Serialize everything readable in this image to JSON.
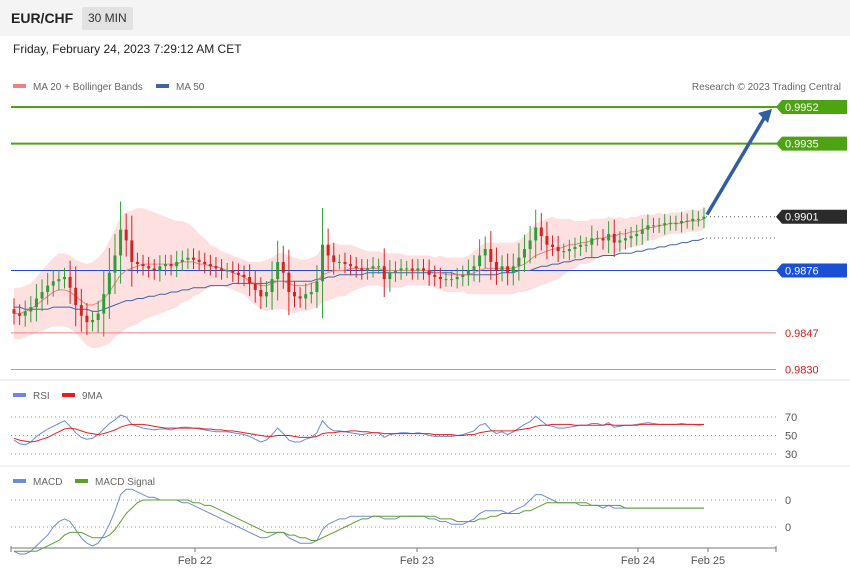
{
  "header": {
    "pair": "EUR/CHF",
    "timeframe": "30 MIN",
    "datetime": "Friday, February 24, 2023 7:29:12 AM CET"
  },
  "colors": {
    "up": "#2e9e3b",
    "down": "#d32323",
    "ma20": "#f08080",
    "band": "#ffd6d6",
    "ma50": "#3f65a8",
    "resistance": "#4da312",
    "pivot": "#1a4fd6",
    "support": "#f08080",
    "arrow": "#2f5fa0",
    "rsi": "#6f8ad8",
    "rsi_ma": "#e02020",
    "macd": "#6f8ad8",
    "macd_signal": "#5aa02c"
  },
  "chart_data": [
    {
      "type": "candlestick",
      "legend": [
        {
          "name": "MA 20 + Bollinger Bands",
          "color": "#f08080"
        },
        {
          "name": "MA 50",
          "color": "#3f65a8"
        }
      ],
      "credit": "Research © 2023 Trading Central",
      "ylim": [
        0.9825,
        0.996
      ],
      "x_labels": [
        "Feb 22",
        "Feb 23",
        "Feb 24",
        "Feb 25"
      ],
      "levels": [
        {
          "value": 0.9952,
          "label": "0.9952",
          "kind": "resistance"
        },
        {
          "value": 0.9935,
          "label": "0.9935",
          "kind": "resistance"
        },
        {
          "value": 0.9901,
          "label": "0.9901",
          "kind": "last"
        },
        {
          "value": 0.9876,
          "label": "0.9876",
          "kind": "pivot"
        },
        {
          "value": 0.9847,
          "label": "0.9847",
          "kind": "support"
        },
        {
          "value": 0.983,
          "label": "0.9830",
          "kind": "support"
        }
      ],
      "close": [
        0.9856,
        0.9855,
        0.9857,
        0.9859,
        0.9863,
        0.9866,
        0.9869,
        0.9871,
        0.9872,
        0.9873,
        0.9868,
        0.986,
        0.9855,
        0.9852,
        0.9853,
        0.9856,
        0.9865,
        0.9875,
        0.9883,
        0.9895,
        0.989,
        0.988,
        0.9879,
        0.9878,
        0.9877,
        0.9876,
        0.9878,
        0.9879,
        0.9878,
        0.988,
        0.9881,
        0.9882,
        0.9881,
        0.988,
        0.9879,
        0.9878,
        0.9877,
        0.9876,
        0.9876,
        0.9875,
        0.9874,
        0.9873,
        0.987,
        0.9867,
        0.9864,
        0.9866,
        0.9872,
        0.988,
        0.9875,
        0.9866,
        0.9864,
        0.9863,
        0.9865,
        0.9866,
        0.9871,
        0.9888,
        0.9883,
        0.988,
        0.988,
        0.9879,
        0.9878,
        0.9877,
        0.9876,
        0.9877,
        0.9878,
        0.9878,
        0.9872,
        0.9875,
        0.9876,
        0.9877,
        0.9877,
        0.9876,
        0.9877,
        0.9876,
        0.9874,
        0.9873,
        0.9872,
        0.9872,
        0.9872,
        0.9873,
        0.9874,
        0.9876,
        0.9878,
        0.9883,
        0.9886,
        0.988,
        0.9876,
        0.9878,
        0.9875,
        0.9878,
        0.9882,
        0.9886,
        0.989,
        0.9896,
        0.9892,
        0.9888,
        0.9887,
        0.9885,
        0.9885,
        0.9886,
        0.9887,
        0.9888,
        0.9888,
        0.9891,
        0.9891,
        0.989,
        0.9893,
        0.9889,
        0.989,
        0.9891,
        0.9892,
        0.9893,
        0.9895,
        0.9897,
        0.9897,
        0.9897,
        0.9898,
        0.9898,
        0.9898,
        0.9899,
        0.9899,
        0.99,
        0.99,
        0.9901
      ],
      "ma20": [
        0.9856,
        0.9856,
        0.9857,
        0.9858,
        0.986,
        0.9862,
        0.9864,
        0.9866,
        0.9867,
        0.9867,
        0.9866,
        0.9864,
        0.9862,
        0.986,
        0.986,
        0.9861,
        0.9863,
        0.9866,
        0.987,
        0.9874,
        0.9876,
        0.9877,
        0.9878,
        0.9879,
        0.9879,
        0.9879,
        0.9879,
        0.9879,
        0.9879,
        0.9879,
        0.988,
        0.988,
        0.988,
        0.9879,
        0.9879,
        0.9878,
        0.9878,
        0.9877,
        0.9876,
        0.9875,
        0.9874,
        0.9873,
        0.9871,
        0.987,
        0.9869,
        0.9869,
        0.987,
        0.9871,
        0.9871,
        0.987,
        0.9869,
        0.9869,
        0.9869,
        0.987,
        0.9871,
        0.9874,
        0.9875,
        0.9876,
        0.9876,
        0.9876,
        0.9877,
        0.9877,
        0.9877,
        0.9877,
        0.9877,
        0.9877,
        0.9876,
        0.9876,
        0.9876,
        0.9876,
        0.9876,
        0.9876,
        0.9876,
        0.9876,
        0.9876,
        0.9875,
        0.9875,
        0.9874,
        0.9874,
        0.9874,
        0.9874,
        0.9874,
        0.9875,
        0.9876,
        0.9877,
        0.9877,
        0.9877,
        0.9877,
        0.9877,
        0.9877,
        0.9878,
        0.9879,
        0.9881,
        0.9883,
        0.9884,
        0.9885,
        0.9886,
        0.9886,
        0.9887,
        0.9888,
        0.9888,
        0.9889,
        0.9889,
        0.989,
        0.9891,
        0.9891,
        0.9892,
        0.9892,
        0.9893,
        0.9893,
        0.9894,
        0.9894,
        0.9895,
        0.9896,
        0.9896,
        0.9897,
        0.9897,
        0.9898,
        0.9898,
        0.9898,
        0.9899,
        0.9899,
        0.9899,
        0.99
      ],
      "band_width": [
        0.0012,
        0.0012,
        0.0012,
        0.0012,
        0.0013,
        0.0014,
        0.0015,
        0.0016,
        0.0017,
        0.0017,
        0.0017,
        0.0017,
        0.0018,
        0.0019,
        0.002,
        0.0021,
        0.0022,
        0.0024,
        0.0025,
        0.0027,
        0.0027,
        0.0027,
        0.0027,
        0.0026,
        0.0025,
        0.0024,
        0.0023,
        0.0022,
        0.0021,
        0.002,
        0.0019,
        0.0018,
        0.0016,
        0.0014,
        0.0012,
        0.001,
        0.0009,
        0.0008,
        0.0008,
        0.0008,
        0.0008,
        0.0008,
        0.0009,
        0.001,
        0.0011,
        0.0012,
        0.0012,
        0.0013,
        0.0013,
        0.0013,
        0.0013,
        0.0012,
        0.0012,
        0.0012,
        0.0012,
        0.0013,
        0.0013,
        0.0013,
        0.0012,
        0.0012,
        0.0011,
        0.001,
        0.0009,
        0.0008,
        0.0008,
        0.0008,
        0.0008,
        0.0008,
        0.0008,
        0.0008,
        0.0007,
        0.0007,
        0.0007,
        0.0007,
        0.0007,
        0.0007,
        0.0008,
        0.0008,
        0.0008,
        0.0008,
        0.0008,
        0.0009,
        0.001,
        0.0011,
        0.0012,
        0.0012,
        0.0012,
        0.0012,
        0.0012,
        0.0012,
        0.0012,
        0.0013,
        0.0014,
        0.0015,
        0.0015,
        0.0015,
        0.0015,
        0.0014,
        0.0013,
        0.0012,
        0.0011,
        0.001,
        0.001,
        0.001,
        0.0009,
        0.0009,
        0.0009,
        0.0008,
        0.0008,
        0.0007,
        0.0007,
        0.0007,
        0.0007,
        0.0006,
        0.0006,
        0.0006,
        0.0005,
        0.0005,
        0.0005,
        0.0005,
        0.0005,
        0.0005,
        0.0005,
        0.0005
      ],
      "ma50": [
        0.9859,
        0.9859,
        0.9858,
        0.9858,
        0.9858,
        0.9858,
        0.9858,
        0.9859,
        0.9859,
        0.9859,
        0.9859,
        0.9858,
        0.9858,
        0.9858,
        0.9857,
        0.9857,
        0.9858,
        0.9859,
        0.986,
        0.9861,
        0.9862,
        0.9862,
        0.9863,
        0.9863,
        0.9864,
        0.9864,
        0.9865,
        0.9865,
        0.9866,
        0.9866,
        0.9867,
        0.9867,
        0.9868,
        0.9868,
        0.9868,
        0.9869,
        0.9869,
        0.9869,
        0.9869,
        0.987,
        0.987,
        0.987,
        0.987,
        0.987,
        0.987,
        0.987,
        0.9871,
        0.9871,
        0.9871,
        0.9871,
        0.9871,
        0.9871,
        0.9871,
        0.9871,
        0.9872,
        0.9872,
        0.9873,
        0.9873,
        0.9874,
        0.9874,
        0.9874,
        0.9874,
        0.9874,
        0.9875,
        0.9875,
        0.9875,
        0.9875,
        0.9875,
        0.9875,
        0.9875,
        0.9875,
        0.9875,
        0.9875,
        0.9875,
        0.9875,
        0.9875,
        0.9875,
        0.9875,
        0.9875,
        0.9874,
        0.9874,
        0.9874,
        0.9874,
        0.9874,
        0.9874,
        0.9874,
        0.9874,
        0.9875,
        0.9875,
        0.9875,
        0.9876,
        0.9876,
        0.9876,
        0.9877,
        0.9878,
        0.9878,
        0.9879,
        0.9879,
        0.988,
        0.988,
        0.9881,
        0.9881,
        0.9882,
        0.9882,
        0.9882,
        0.9883,
        0.9883,
        0.9883,
        0.9884,
        0.9884,
        0.9884,
        0.9885,
        0.9885,
        0.9886,
        0.9886,
        0.9887,
        0.9887,
        0.9888,
        0.9888,
        0.9889,
        0.9889,
        0.989,
        0.989,
        0.9891
      ],
      "arrow": {
        "from": 0.9902,
        "to": 0.9952
      }
    },
    {
      "type": "line",
      "legend": [
        {
          "name": "RSI",
          "color": "#6f8ad8"
        },
        {
          "name": "9MA",
          "color": "#e02020"
        }
      ],
      "ylim": [
        25,
        80
      ],
      "y_ticks": [
        {
          "value": 70,
          "label": "70"
        },
        {
          "value": 50,
          "label": "50"
        },
        {
          "value": 30,
          "label": "30"
        }
      ],
      "rsi": [
        45,
        41,
        40,
        43,
        49,
        53,
        57,
        60,
        63,
        66,
        60,
        53,
        48,
        46,
        47,
        51,
        57,
        63,
        67,
        72,
        70,
        62,
        60,
        58,
        57,
        56,
        57,
        57,
        56,
        58,
        59,
        59,
        58,
        57,
        56,
        55,
        54,
        54,
        54,
        53,
        52,
        51,
        49,
        46,
        43,
        45,
        51,
        58,
        52,
        45,
        43,
        43,
        46,
        48,
        53,
        66,
        59,
        55,
        55,
        54,
        53,
        52,
        51,
        52,
        53,
        53,
        48,
        51,
        52,
        53,
        53,
        52,
        53,
        52,
        50,
        49,
        49,
        49,
        49,
        50,
        51,
        53,
        55,
        61,
        63,
        56,
        52,
        54,
        51,
        54,
        58,
        62,
        65,
        71,
        66,
        61,
        60,
        58,
        58,
        59,
        60,
        61,
        61,
        63,
        63,
        61,
        64,
        59,
        60,
        61,
        61,
        62,
        63,
        64,
        63,
        62,
        62,
        62,
        62,
        63,
        62,
        62,
        61,
        62
      ],
      "rsi_ma": [
        47,
        45,
        44,
        43,
        44,
        46,
        48,
        51,
        54,
        57,
        58,
        57,
        55,
        53,
        52,
        51,
        52,
        54,
        56,
        59,
        61,
        62,
        62,
        62,
        61,
        60,
        59,
        58,
        58,
        58,
        58,
        58,
        58,
        58,
        57,
        57,
        56,
        56,
        55,
        55,
        54,
        53,
        52,
        51,
        50,
        49,
        49,
        50,
        50,
        50,
        49,
        48,
        48,
        48,
        49,
        52,
        53,
        53,
        54,
        54,
        55,
        55,
        54,
        54,
        53,
        53,
        52,
        52,
        52,
        52,
        52,
        52,
        52,
        52,
        52,
        51,
        51,
        51,
        51,
        50,
        50,
        51,
        51,
        53,
        54,
        55,
        55,
        55,
        55,
        55,
        56,
        57,
        58,
        60,
        61,
        61,
        62,
        62,
        62,
        62,
        61,
        61,
        61,
        61,
        61,
        61,
        62,
        61,
        61,
        61,
        61,
        61,
        62,
        62,
        62,
        62,
        62,
        62,
        62,
        62,
        62,
        62,
        62,
        62
      ]
    },
    {
      "type": "line",
      "legend": [
        {
          "name": "MACD",
          "color": "#6f8ad8"
        },
        {
          "name": "MACD Signal",
          "color": "#5aa02c"
        }
      ],
      "ylim": [
        -0.0016,
        0.0012
      ],
      "y_ticks": [
        {
          "value": 0.0006,
          "label": "0"
        },
        {
          "value": -0.0004,
          "label": "0"
        }
      ],
      "macd": [
        -0.0013,
        -0.0014,
        -0.0014,
        -0.0013,
        -0.0011,
        -0.0009,
        -0.0007,
        -0.0004,
        -0.0002,
        -0.0001,
        -0.0002,
        -0.0005,
        -0.0008,
        -0.001,
        -0.0011,
        -0.001,
        -0.0007,
        -0.0003,
        0.0002,
        0.0008,
        0.001,
        0.001,
        0.0009,
        0.0008,
        0.0007,
        0.0007,
        0.0006,
        0.0006,
        0.0006,
        0.0006,
        0.0005,
        0.0005,
        0.0004,
        0.0003,
        0.0002,
        0.0001,
        0.0,
        -0.0001,
        -0.0002,
        -0.0003,
        -0.0004,
        -0.0005,
        -0.0006,
        -0.0007,
        -0.0008,
        -0.0008,
        -0.0007,
        -0.0006,
        -0.0006,
        -0.0008,
        -0.0009,
        -0.001,
        -0.001,
        -0.001,
        -0.0009,
        -0.0005,
        -0.0003,
        -0.0002,
        -0.0001,
        -0.0001,
        0.0,
        0.0,
        0.0,
        0.0,
        0.0,
        0.0,
        -0.0001,
        -0.0001,
        -0.0001,
        0.0,
        0.0,
        0.0,
        0.0,
        0.0,
        -0.0001,
        -0.0001,
        -0.0002,
        -0.0002,
        -0.0003,
        -0.0003,
        -0.0003,
        -0.0002,
        -0.0001,
        0.0001,
        0.0002,
        0.0002,
        0.0002,
        0.0002,
        0.0001,
        0.0002,
        0.0003,
        0.0004,
        0.0006,
        0.0008,
        0.0008,
        0.0007,
        0.0006,
        0.0005,
        0.0005,
        0.0005,
        0.0005,
        0.0004,
        0.0004,
        0.0004,
        0.0004,
        0.0003,
        0.0004,
        0.0003,
        0.0003,
        0.0003,
        0.0003,
        0.0003,
        0.0003,
        0.0003,
        0.0003,
        0.0003,
        0.0003,
        0.0003,
        0.0003,
        0.0003,
        0.0003,
        0.0003,
        0.0003,
        0.0003
      ],
      "signal": [
        -0.0013,
        -0.0013,
        -0.0013,
        -0.0013,
        -0.0013,
        -0.0012,
        -0.0011,
        -0.001,
        -0.0009,
        -0.0007,
        -0.0006,
        -0.0006,
        -0.0006,
        -0.0007,
        -0.0008,
        -0.0008,
        -0.0008,
        -0.0007,
        -0.0005,
        -0.0002,
        0.0001,
        0.0003,
        0.0005,
        0.0006,
        0.0006,
        0.0006,
        0.0006,
        0.0006,
        0.0006,
        0.0006,
        0.0006,
        0.0006,
        0.0005,
        0.0005,
        0.0004,
        0.0004,
        0.0003,
        0.0002,
        0.0001,
        0.0,
        -0.0001,
        -0.0002,
        -0.0003,
        -0.0004,
        -0.0005,
        -0.0006,
        -0.0006,
        -0.0006,
        -0.0006,
        -0.0007,
        -0.0007,
        -0.0008,
        -0.0008,
        -0.0009,
        -0.0009,
        -0.0008,
        -0.0007,
        -0.0006,
        -0.0005,
        -0.0004,
        -0.0003,
        -0.0002,
        -0.0001,
        -0.0001,
        0.0,
        0.0,
        0.0,
        0.0,
        0.0,
        0.0,
        0.0,
        0.0,
        0.0,
        0.0,
        0.0,
        0.0,
        -0.0001,
        -0.0001,
        -0.0001,
        -0.0002,
        -0.0002,
        -0.0002,
        -0.0002,
        -0.0001,
        -0.0001,
        0.0,
        0.0,
        0.0001,
        0.0001,
        0.0001,
        0.0001,
        0.0002,
        0.0002,
        0.0003,
        0.0004,
        0.0005,
        0.0005,
        0.0005,
        0.0005,
        0.0005,
        0.0005,
        0.0005,
        0.0005,
        0.0004,
        0.0004,
        0.0004,
        0.0004,
        0.0004,
        0.0004,
        0.0003,
        0.0003,
        0.0003,
        0.0003,
        0.0003,
        0.0003,
        0.0003,
        0.0003,
        0.0003,
        0.0003,
        0.0003,
        0.0003,
        0.0003,
        0.0003,
        0.0003
      ]
    }
  ]
}
